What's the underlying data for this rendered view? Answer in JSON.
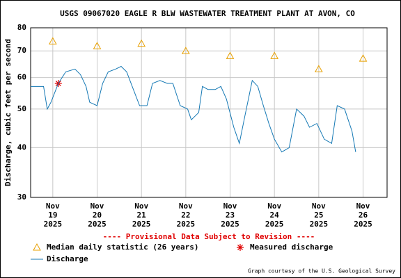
{
  "chart_data": {
    "type": "line",
    "title": "USGS 09067020 EAGLE R BLW WASTEWATER TREATMENT PLANT AT AVON, CO",
    "ylabel": "Discharge, cubic feet per second",
    "note": "---- Provisional Data Subject to Revision ----",
    "credit": "Graph courtesy of the U.S. Geological Survey",
    "yscale": "log",
    "grid": true,
    "xlim": [
      "2025-11-18T12:00",
      "2025-11-26T13:00"
    ],
    "ylim": [
      30,
      80
    ],
    "yticks": [
      30,
      40,
      50,
      60,
      70,
      80
    ],
    "xticks": [
      {
        "value": "2025-11-19T00:00",
        "label": [
          "Nov",
          "19",
          "2025"
        ]
      },
      {
        "value": "2025-11-20T00:00",
        "label": [
          "Nov",
          "20",
          "2025"
        ]
      },
      {
        "value": "2025-11-21T00:00",
        "label": [
          "Nov",
          "21",
          "2025"
        ]
      },
      {
        "value": "2025-11-22T00:00",
        "label": [
          "Nov",
          "22",
          "2025"
        ]
      },
      {
        "value": "2025-11-23T00:00",
        "label": [
          "Nov",
          "23",
          "2025"
        ]
      },
      {
        "value": "2025-11-24T00:00",
        "label": [
          "Nov",
          "24",
          "2025"
        ]
      },
      {
        "value": "2025-11-25T00:00",
        "label": [
          "Nov",
          "25",
          "2025"
        ]
      },
      {
        "value": "2025-11-26T00:00",
        "label": [
          "Nov",
          "26",
          "2025"
        ]
      }
    ],
    "series": [
      {
        "name": "Median daily statistic (26 years)",
        "color": "#e8a000",
        "marker": "triangle",
        "x": [
          "2025-11-19T00:00",
          "2025-11-20T00:00",
          "2025-11-21T00:00",
          "2025-11-22T00:00",
          "2025-11-23T00:00",
          "2025-11-24T00:00",
          "2025-11-25T00:00",
          "2025-11-26T00:00"
        ],
        "values": [
          74,
          72,
          73,
          70,
          68,
          68,
          63,
          67
        ]
      },
      {
        "name": "Measured discharge",
        "color": "#e00000",
        "marker": "asterisk",
        "x": [
          "2025-11-19T03:00"
        ],
        "values": [
          58
        ]
      },
      {
        "name": "Discharge",
        "color": "#1478b4",
        "marker": "line",
        "x": [
          "2025-11-18T12:00",
          "2025-11-18T19:00",
          "2025-11-18T21:00",
          "2025-11-18T23:00",
          "2025-11-19T03:00",
          "2025-11-19T07:00",
          "2025-11-19T12:00",
          "2025-11-19T15:00",
          "2025-11-19T18:00",
          "2025-11-19T20:00",
          "2025-11-20T00:00",
          "2025-11-20T03:00",
          "2025-11-20T06:00",
          "2025-11-20T10:00",
          "2025-11-20T13:00",
          "2025-11-20T16:00",
          "2025-11-20T19:00",
          "2025-11-20T23:00",
          "2025-11-21T03:00",
          "2025-11-21T06:00",
          "2025-11-21T10:00",
          "2025-11-21T14:00",
          "2025-11-21T17:00",
          "2025-11-21T21:00",
          "2025-11-22T01:00",
          "2025-11-22T03:00",
          "2025-11-22T07:00",
          "2025-11-22T09:00",
          "2025-11-22T12:00",
          "2025-11-22T16:00",
          "2025-11-22T19:00",
          "2025-11-22T22:00",
          "2025-11-23T02:00",
          "2025-11-23T05:00",
          "2025-11-23T08:00",
          "2025-11-23T12:00",
          "2025-11-23T15:00",
          "2025-11-23T18:00",
          "2025-11-23T21:00",
          "2025-11-24T00:00",
          "2025-11-24T04:00",
          "2025-11-24T08:00",
          "2025-11-24T12:00",
          "2025-11-24T16:00",
          "2025-11-24T19:00",
          "2025-11-24T23:00",
          "2025-11-25T03:00",
          "2025-11-25T07:00",
          "2025-11-25T10:00",
          "2025-11-25T14:00",
          "2025-11-25T18:00",
          "2025-11-25T20:00"
        ],
        "values": [
          57,
          57,
          50,
          52,
          58,
          62,
          63,
          61,
          57,
          52,
          51,
          58,
          62,
          63,
          64,
          62,
          57,
          51,
          51,
          58,
          59,
          58,
          58,
          51,
          50,
          47,
          49,
          57,
          56,
          56,
          57,
          53,
          45,
          41,
          48,
          59,
          57,
          51,
          46,
          42,
          39,
          40,
          50,
          48,
          45,
          46,
          42,
          41,
          51,
          50,
          44,
          39
        ]
      }
    ]
  }
}
